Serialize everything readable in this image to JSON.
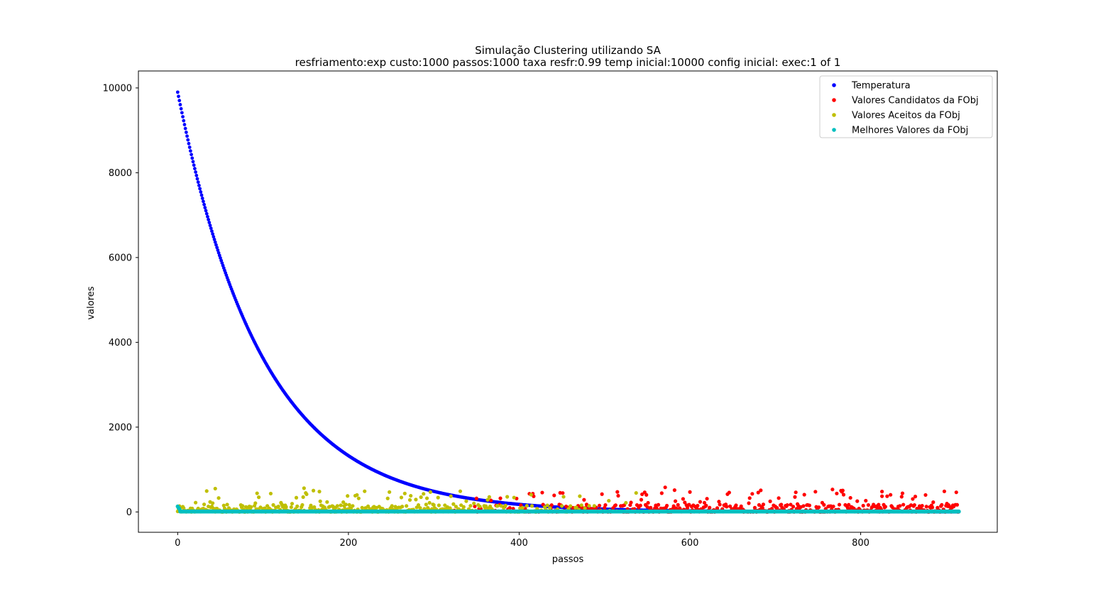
{
  "chart_data": {
    "type": "scatter",
    "title": "Simulação Clustering utilizando SA",
    "subtitle": "resfriamento:exp custo:1000 passos:1000 taxa resfr:0.99 temp inicial:10000 config inicial: exec:1 of 1",
    "xlabel": "passos",
    "ylabel": "valores",
    "xlim": [
      -46,
      960
    ],
    "ylim": [
      -480,
      10400
    ],
    "xticks": [
      0,
      200,
      400,
      600,
      800
    ],
    "yticks": [
      0,
      2000,
      4000,
      6000,
      8000,
      10000
    ],
    "grid": false,
    "legend_position": "top-right",
    "steps": 916,
    "series": [
      {
        "name": "Temperatura",
        "color": "#0000ff",
        "description": "exponential cooling",
        "initial_value": 9900,
        "cooling_rate": 0.99
      },
      {
        "name": "Valores Candidatos da FObj",
        "color": "#ff0000",
        "range": [
          0,
          600
        ]
      },
      {
        "name": "Valores Aceitos da FObj",
        "color": "#bfbf00",
        "range": [
          0,
          580
        ]
      },
      {
        "name": "Melhores Valores da FObj",
        "color": "#00bfbf",
        "initial_value": 130,
        "steady_value": 10
      }
    ]
  }
}
